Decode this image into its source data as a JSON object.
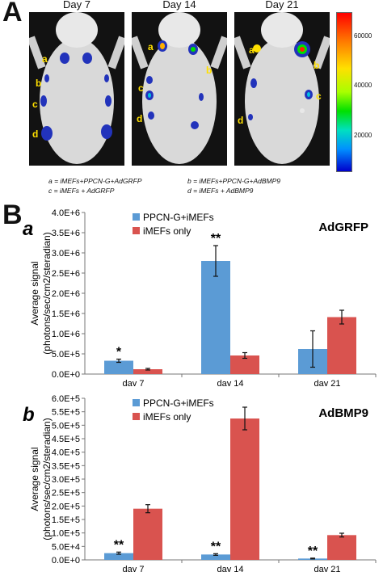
{
  "panelA": {
    "letter": "A",
    "days": [
      "Day 7",
      "Day 14",
      "Day 21"
    ],
    "site_letters": [
      "a",
      "b",
      "c",
      "d"
    ],
    "colorbar": {
      "ticks": [
        "60000",
        "40000",
        "20000"
      ],
      "tick_values": [
        60000,
        40000,
        20000
      ],
      "min": 5000,
      "max": 72000,
      "colors": [
        "#ff0000",
        "#ffe000",
        "#00e000",
        "#0090ff",
        "#0000cc"
      ]
    },
    "legend": {
      "a": "a = iMEFs+PPCN-G+AdGRFP",
      "b": "b = iMEFs+PPCN-G+AdBMP9",
      "c": "c = iMEFs + AdGRFP",
      "d": "d = iMEFs + AdBMP9"
    }
  },
  "panelB": {
    "letter": "B"
  },
  "chart_data": [
    {
      "type": "bar",
      "panel_label": "a",
      "title": "AdGRFP",
      "categories": [
        "day 7",
        "day 14",
        "day 21"
      ],
      "series": [
        {
          "name": "PPCN-G+iMEFs",
          "color": "#5b9bd5",
          "values": [
            330000,
            2800000,
            620000
          ],
          "errors": [
            40000,
            380000,
            450000
          ]
        },
        {
          "name": "iMEFs only",
          "color": "#d9534f",
          "values": [
            120000,
            460000,
            1410000
          ],
          "errors": [
            20000,
            70000,
            170000
          ]
        }
      ],
      "annotations": [
        {
          "category": "day 7",
          "text": "*"
        },
        {
          "category": "day 14",
          "text": "**"
        }
      ],
      "ylabel": "Average signal (photons/sec/cm2/steradian)",
      "yticks": [
        "0.0E+0",
        "5.0E+5",
        "1.0E+6",
        "1.5E+6",
        "2.0E+6",
        "2.5E+6",
        "3.0E+6",
        "3.5E+6",
        "4.0E+6"
      ],
      "ylim": [
        0,
        4000000
      ],
      "legend_position": "top-center"
    },
    {
      "type": "bar",
      "panel_label": "b",
      "title": "AdBMP9",
      "categories": [
        "day 7",
        "day 14",
        "day 21"
      ],
      "series": [
        {
          "name": "PPCN-G+iMEFs",
          "color": "#5b9bd5",
          "values": [
            25000,
            20000,
            5000
          ],
          "errors": [
            4000,
            3000,
            1500
          ]
        },
        {
          "name": "iMEFs only",
          "color": "#d9534f",
          "values": [
            190000,
            525000,
            92000
          ],
          "errors": [
            15000,
            42000,
            7000
          ]
        }
      ],
      "annotations": [
        {
          "category": "day 7",
          "text": "**"
        },
        {
          "category": "day 14",
          "text": "**"
        },
        {
          "category": "day 21",
          "text": "**"
        }
      ],
      "ylabel": "Average signal (photons/sec/cm2/steradian)",
      "yticks": [
        "0.0E+0",
        "5.0E+4",
        "1.0E+5",
        "1.5E+5",
        "2.0E+5",
        "2.5E+5",
        "3.0E+5",
        "3.5E+5",
        "4.0E+5",
        "4.5E+5",
        "5.0E+5",
        "5.5E+5",
        "6.0E+5"
      ],
      "ylim": [
        0,
        600000
      ],
      "legend_position": "top-center"
    }
  ]
}
